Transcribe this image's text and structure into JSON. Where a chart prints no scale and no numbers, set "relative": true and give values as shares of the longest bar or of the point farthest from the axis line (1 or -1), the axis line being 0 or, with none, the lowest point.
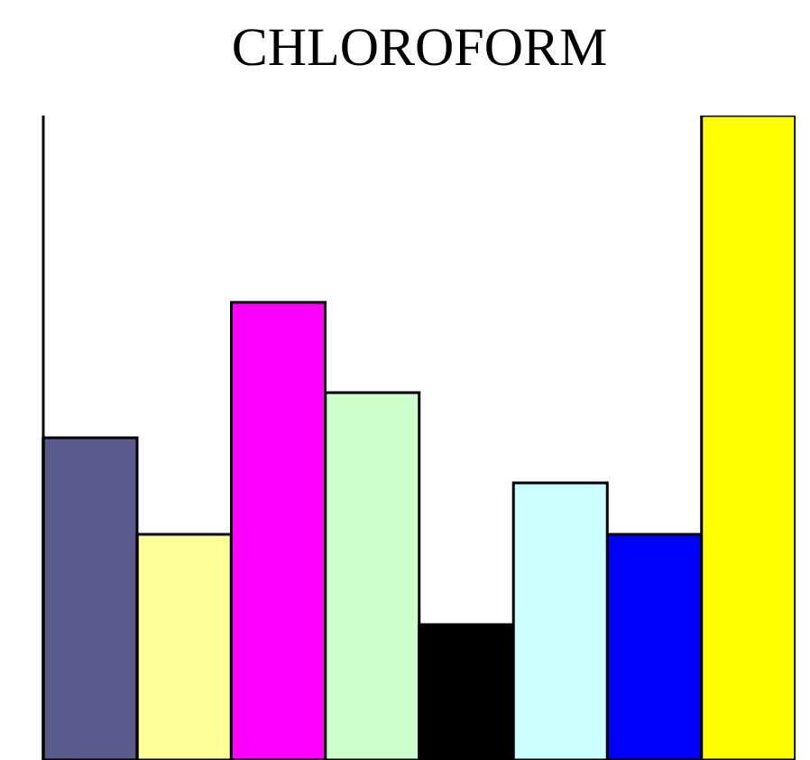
{
  "chart_data": {
    "type": "bar",
    "title": "CHLOROFORM",
    "relative": true,
    "categories": [
      null,
      null,
      null,
      null,
      null,
      null,
      null,
      null
    ],
    "values": [
      0.5,
      0.35,
      0.71,
      0.57,
      0.21,
      0.43,
      0.35,
      1
    ],
    "colors": [
      "#5a5a8c",
      "#ffff99",
      "#ff00ff",
      "#ccffcc",
      "#000000",
      "#ccffff",
      "#0000ff",
      "#ffff00"
    ]
  }
}
